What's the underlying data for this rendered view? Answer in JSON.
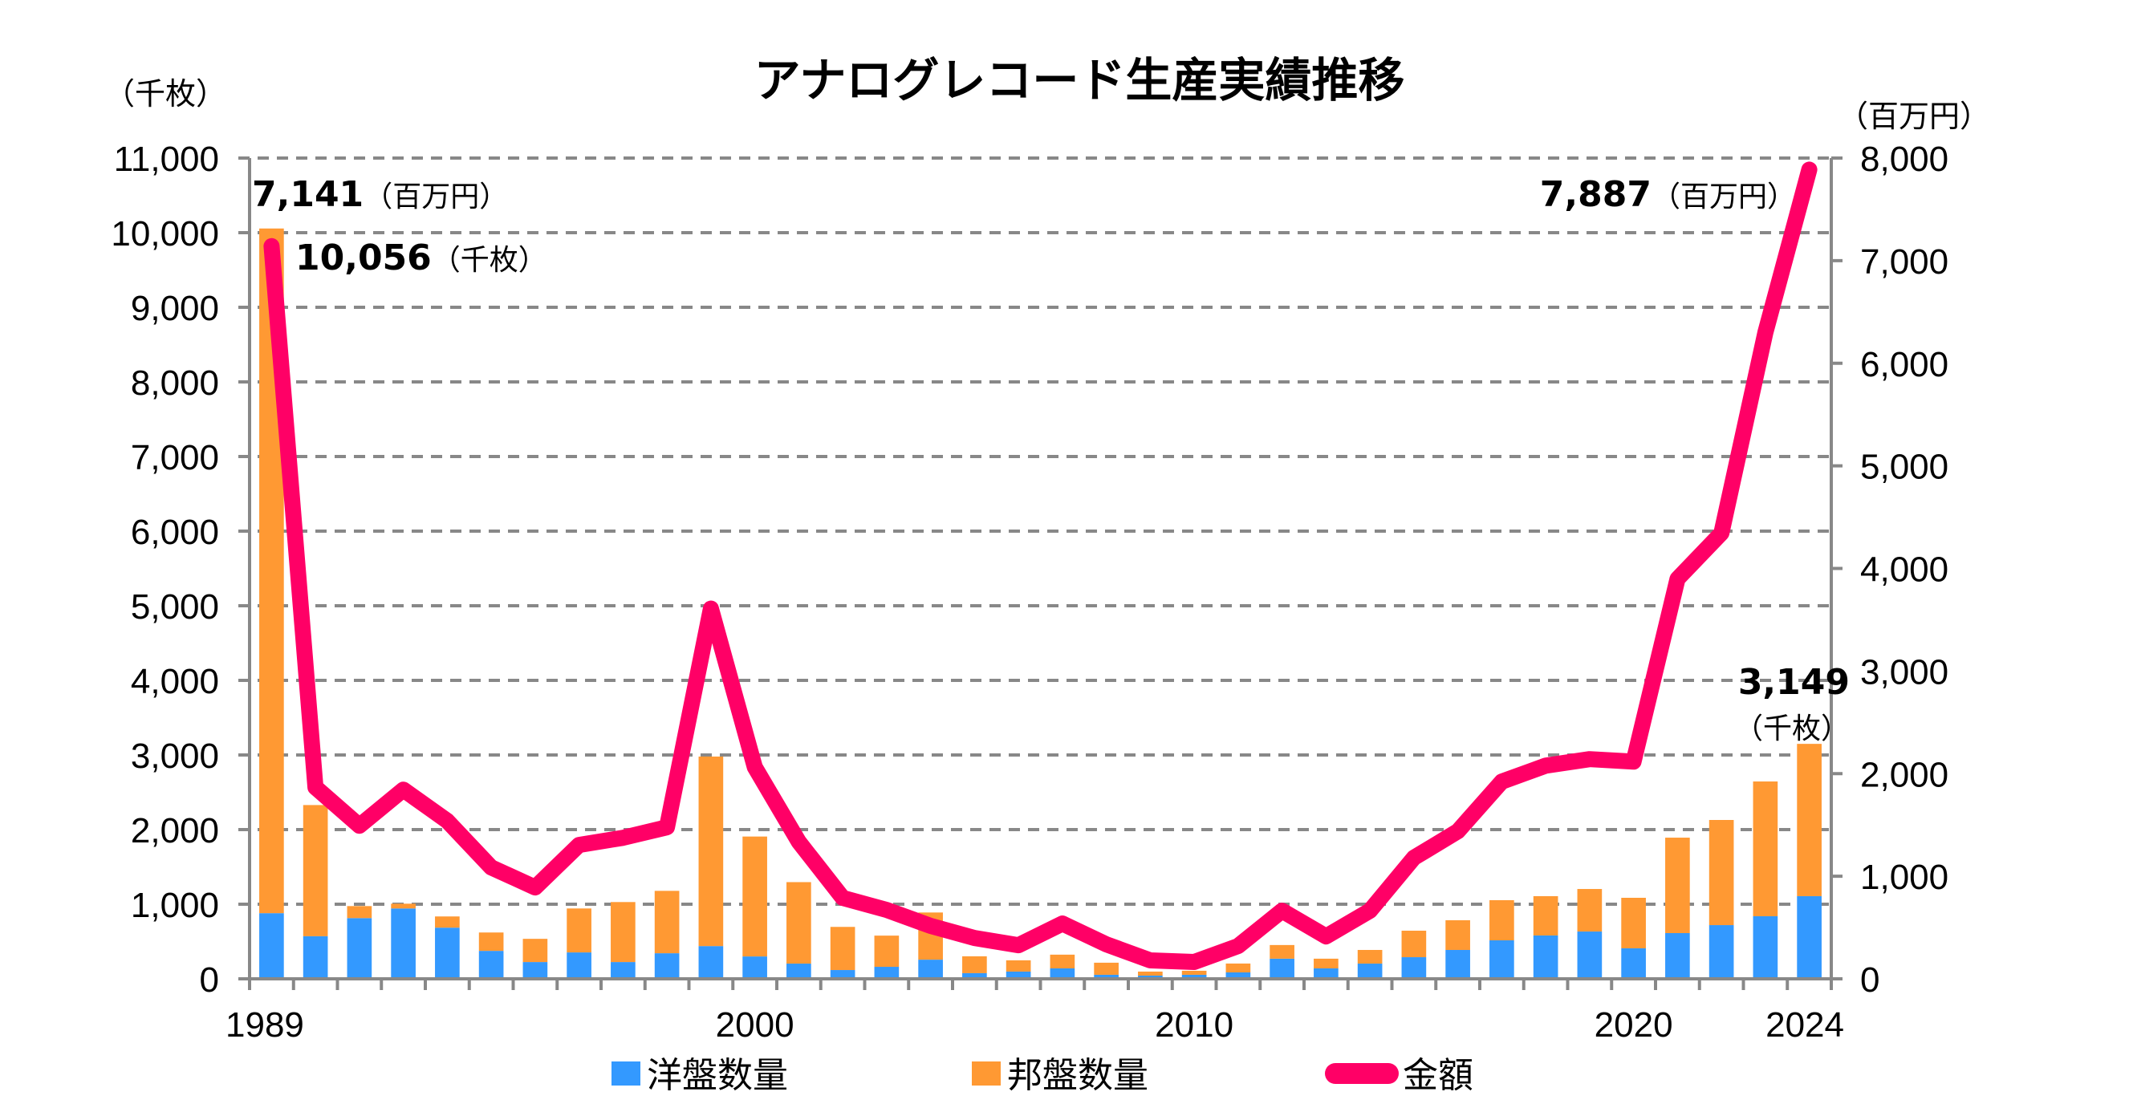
{
  "chart_data": {
    "type": "bar+line",
    "title": "アナログレコード生産実績推移",
    "left_axis": {
      "unit_label": "（千枚）",
      "ylim": [
        0,
        11000
      ],
      "ticks": [
        0,
        1000,
        2000,
        3000,
        4000,
        5000,
        6000,
        7000,
        8000,
        9000,
        10000,
        11000
      ],
      "tick_labels": [
        "0",
        "1,000",
        "2,000",
        "3,000",
        "4,000",
        "5,000",
        "6,000",
        "7,000",
        "8,000",
        "9,000",
        "10,000",
        "11,000"
      ]
    },
    "right_axis": {
      "unit_label": "（百万円）",
      "ylim": [
        0,
        8000
      ],
      "ticks": [
        0,
        1000,
        2000,
        3000,
        4000,
        5000,
        6000,
        7000,
        8000
      ],
      "tick_labels": [
        "0",
        "1,000",
        "2,000",
        "3,000",
        "4,000",
        "5,000",
        "6,000",
        "7,000",
        "8,000"
      ]
    },
    "grid": "horizontal dashed",
    "categories": [
      1989,
      1990,
      1991,
      1992,
      1993,
      1994,
      1995,
      1996,
      1997,
      1998,
      1999,
      2000,
      2001,
      2002,
      2003,
      2004,
      2005,
      2006,
      2007,
      2008,
      2009,
      2010,
      2011,
      2012,
      2013,
      2014,
      2015,
      2016,
      2017,
      2018,
      2019,
      2020,
      2021,
      2022,
      2023,
      2024
    ],
    "x_tick_labels": [
      {
        "year": 1989,
        "label": "1989"
      },
      {
        "year": 2000,
        "label": "2000"
      },
      {
        "year": 2010,
        "label": "2010"
      },
      {
        "year": 2020,
        "label": "2020"
      },
      {
        "year": 2024,
        "label": "2024"
      }
    ],
    "series": [
      {
        "name": "洋盤数量",
        "type": "bar",
        "axis": "left",
        "stack": "qty",
        "color": "#3399FF",
        "values": [
          880,
          571,
          814,
          943,
          686,
          375,
          225,
          354,
          225,
          343,
          439,
          300,
          204,
          118,
          161,
          257,
          76,
          97,
          140,
          54,
          43,
          54,
          86,
          270,
          140,
          204,
          290,
          387,
          516,
          581,
          634,
          409,
          613,
          720,
          839,
          1108
        ]
      },
      {
        "name": "邦盤数量",
        "type": "bar",
        "axis": "left",
        "stack": "qty",
        "color": "#FF9933",
        "values": [
          9176,
          1758,
          161,
          64,
          150,
          246,
          311,
          589,
          804,
          836,
          2540,
          1607,
          1092,
          578,
          418,
          632,
          226,
          151,
          184,
          162,
          54,
          54,
          119,
          183,
          130,
          183,
          355,
          398,
          538,
          527,
          570,
          677,
          1279,
          1409,
          1806,
          2041
        ]
      },
      {
        "name": "金額",
        "type": "line",
        "axis": "right",
        "color": "#FF0066",
        "values": [
          7141,
          1867,
          1492,
          1844,
          1539,
          1086,
          891,
          1305,
          1375,
          1477,
          3609,
          2063,
          1336,
          789,
          672,
          516,
          398,
          328,
          539,
          336,
          180,
          164,
          320,
          664,
          414,
          664,
          1180,
          1438,
          1922,
          2078,
          2141,
          2117,
          3898,
          4344,
          6300,
          7887
        ]
      }
    ],
    "annotations": [
      {
        "value": "7,141",
        "unit": "（百万円）",
        "target": "金額 1989"
      },
      {
        "value": "10,056",
        "unit": "（千枚）",
        "target": "数量 1989"
      },
      {
        "value": "7,887",
        "unit": "（百万円）",
        "target": "金額 2024"
      },
      {
        "value": "3,149",
        "unit": "（千枚）",
        "target": "数量 2024"
      }
    ],
    "legend": {
      "position": "bottom",
      "entries": [
        "洋盤数量",
        "邦盤数量",
        "金額"
      ]
    }
  },
  "colors": {
    "grid": "#888888",
    "axis": "#888888",
    "text": "#000000"
  }
}
